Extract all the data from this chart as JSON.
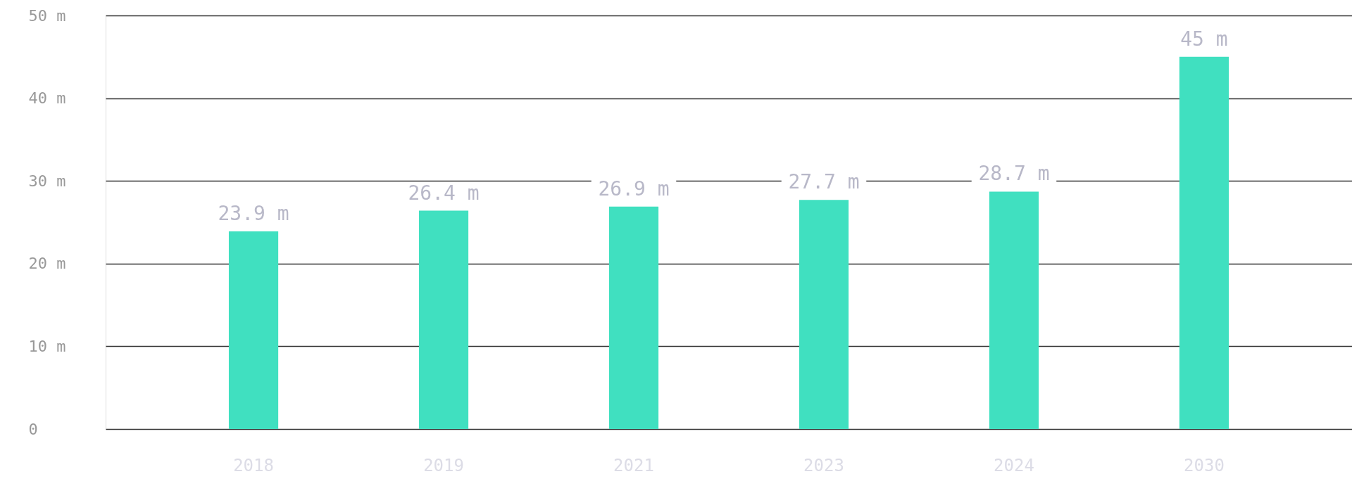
{
  "chart_data": {
    "type": "bar",
    "categories": [
      "2018",
      "2019",
      "2021",
      "2023",
      "2024",
      "2030"
    ],
    "values": [
      23.9,
      26.4,
      26.9,
      27.7,
      28.7,
      45
    ],
    "value_labels": [
      "23.9 m",
      "26.4 m",
      "26.9 m",
      "27.7 m",
      "28.7 m",
      "45 m"
    ],
    "color": "#40e0c0",
    "ylim": [
      0,
      50
    ],
    "yticks": [
      0,
      {
        "value": 10,
        "label": "10 m"
      },
      {
        "value": 20,
        "label": "20 m"
      },
      {
        "value": 30,
        "label": "30 m"
      },
      {
        "value": 40,
        "label": "40 m"
      },
      {
        "value": 50,
        "label": "50 m"
      }
    ],
    "grid": "y"
  }
}
